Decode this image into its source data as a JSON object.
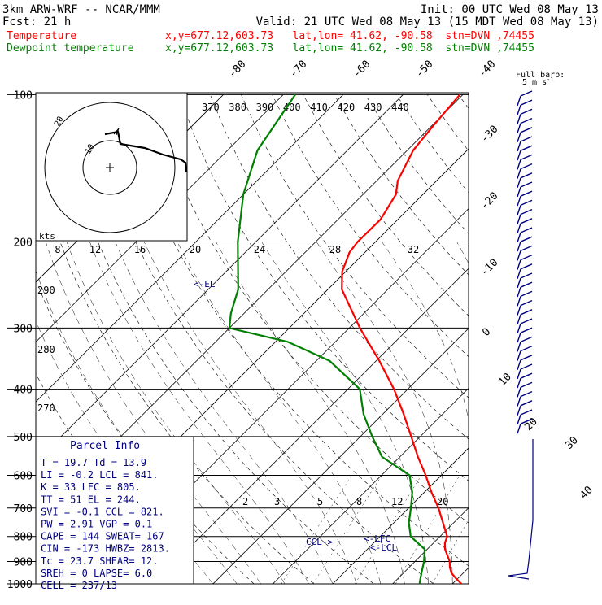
{
  "header": {
    "model": "3km ARW-WRF -- NCAR/MMM",
    "init": "Init: 00 UTC Wed 08 May 13",
    "fcst": "Fcst:    21 h",
    "valid": "Valid: 21 UTC Wed 08 May 13 (15 MDT Wed 08 May 13)"
  },
  "legend": {
    "temperature": {
      "label": "Temperature",
      "loc": "x,y=677.12,603.73   lat,lon= 41.62, -90.58  stn=DVN ,74455",
      "color": "#ff0000"
    },
    "dewpoint": {
      "label": "Dewpoint temperature",
      "loc": "x,y=677.12,603.73   lat,lon= 41.62, -90.58  stn=DVN ,74455",
      "color": "#008000"
    }
  },
  "barb_legend": {
    "line1": "Full barb:",
    "line2": "5 m s",
    "exp": "-1"
  },
  "pressure_labels": [
    "100",
    "200",
    "300",
    "400",
    "500",
    "600",
    "700",
    "800",
    "900",
    "1000"
  ],
  "isotherm_labels": [
    "-80",
    "-70",
    "-60",
    "-50",
    "-40",
    "-30",
    "-20",
    "-10",
    "0",
    "10",
    "20",
    "30",
    "40"
  ],
  "theta_labels": [
    "370",
    "380",
    "390",
    "400",
    "410",
    "420",
    "430",
    "440"
  ],
  "mixing_ratio_labels": [
    "2",
    "3",
    "5",
    "8",
    "12",
    "20"
  ],
  "thetae_side_labels": [
    "290",
    "280",
    "270"
  ],
  "hodograph": {
    "unit": "kts",
    "speed_labels": [
      "8",
      "12",
      "16",
      "20",
      "24",
      "28",
      "32"
    ],
    "ring_labels": [
      "10",
      "20"
    ]
  },
  "level_marks": {
    "el": "<-EL",
    "ccl": "CCL->",
    "lfc": "<-LFC",
    "lcl": "<-LCL"
  },
  "parcel_info": {
    "title": "Parcel Info",
    "rows": [
      "T  =    19.7  Td =  13.9",
      "LI =    -0.2  LCL =  841.",
      "K  =      33  LFC =  805.",
      "TT =      51  EL  =  244.",
      "SVI =   -0.1  CCL =  821.",
      "PW =    2.91  VGP =   0.1",
      "CAPE =   144  SWEAT=  167",
      "CIN =   -173  HWBZ= 2813.",
      "Tc =    23.7  SHEAR=  12.",
      "SREH =     0  LAPSE=  6.0",
      "CELL = 237/13"
    ]
  },
  "chart_data": {
    "type": "line",
    "diagram": "skew-T log-P",
    "y_axis": "pressure (hPa)",
    "ylim": [
      1000,
      100
    ],
    "series": [
      {
        "name": "Temperature",
        "color": "#ff0000",
        "points": [
          {
            "p": 1000,
            "t": 21.5
          },
          {
            "p": 975,
            "t": 19.7
          },
          {
            "p": 950,
            "t": 18.0
          },
          {
            "p": 925,
            "t": 16.8
          },
          {
            "p": 900,
            "t": 15.8
          },
          {
            "p": 850,
            "t": 13.0
          },
          {
            "p": 825,
            "t": 11.9
          },
          {
            "p": 800,
            "t": 11.2
          },
          {
            "p": 750,
            "t": 8.2
          },
          {
            "p": 700,
            "t": 5.0
          },
          {
            "p": 650,
            "t": 1.2
          },
          {
            "p": 600,
            "t": -2.6
          },
          {
            "p": 550,
            "t": -7.0
          },
          {
            "p": 500,
            "t": -11.5
          },
          {
            "p": 450,
            "t": -16.5
          },
          {
            "p": 400,
            "t": -22.3
          },
          {
            "p": 350,
            "t": -29.5
          },
          {
            "p": 300,
            "t": -38.2
          },
          {
            "p": 250,
            "t": -47.7
          },
          {
            "p": 230,
            "t": -50.6
          },
          {
            "p": 210,
            "t": -52.6
          },
          {
            "p": 200,
            "t": -53.0
          },
          {
            "p": 180,
            "t": -52.9
          },
          {
            "p": 160,
            "t": -54.5
          },
          {
            "p": 150,
            "t": -56.5
          },
          {
            "p": 130,
            "t": -59.0
          },
          {
            "p": 115,
            "t": -59.8
          },
          {
            "p": 100,
            "t": -60.5
          }
        ]
      },
      {
        "name": "Dewpoint temperature",
        "color": "#008000",
        "points": [
          {
            "p": 1000,
            "t": 14.5
          },
          {
            "p": 980,
            "t": 13.9
          },
          {
            "p": 950,
            "t": 13.0
          },
          {
            "p": 900,
            "t": 11.5
          },
          {
            "p": 850,
            "t": 9.6
          },
          {
            "p": 800,
            "t": 5.1
          },
          {
            "p": 750,
            "t": 2.5
          },
          {
            "p": 700,
            "t": 0.4
          },
          {
            "p": 650,
            "t": -2.0
          },
          {
            "p": 600,
            "t": -5.3
          },
          {
            "p": 550,
            "t": -13.0
          },
          {
            "p": 500,
            "t": -18.0
          },
          {
            "p": 450,
            "t": -23.2
          },
          {
            "p": 400,
            "t": -28.0
          },
          {
            "p": 350,
            "t": -37.8
          },
          {
            "p": 320,
            "t": -48.0
          },
          {
            "p": 300,
            "t": -60.0
          },
          {
            "p": 280,
            "t": -62.2
          },
          {
            "p": 250,
            "t": -65.0
          },
          {
            "p": 200,
            "t": -73.0
          },
          {
            "p": 160,
            "t": -80.0
          },
          {
            "p": 130,
            "t": -85.0
          },
          {
            "p": 100,
            "t": -88.0
          }
        ]
      }
    ],
    "wind_barbs_count": 37
  }
}
